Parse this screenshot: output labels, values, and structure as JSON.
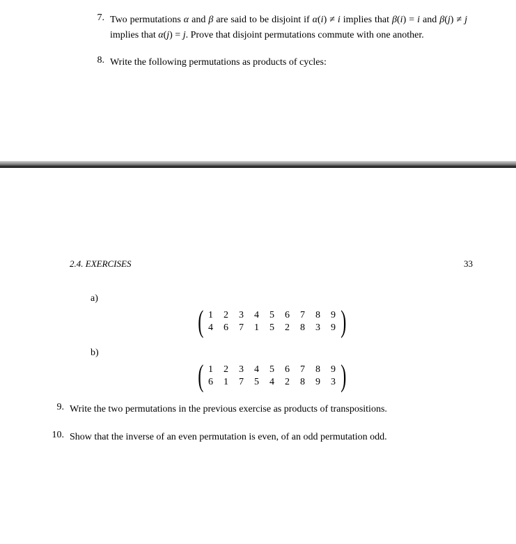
{
  "top": {
    "ex7": {
      "num": "7.",
      "text_html": "Two permutations <span class='it'>α</span> and <span class='it'>β</span> are said to be disjoint if <span class='it'>α</span>(<span class='it'>i</span>) ≠ <span class='it'>i</span> implies that <span class='it'>β</span>(<span class='it'>i</span>) = <span class='it'>i</span> and <span class='it'>β</span>(<span class='it'>j</span>) ≠ <span class='it'>j</span> implies that <span class='it'>α</span>(<span class='it'>j</span>) = <span class='it'>j</span>. Prove that disjoint permutations commute with one another."
    },
    "ex8": {
      "num": "8.",
      "text": "Write the following permutations as products of cycles:"
    }
  },
  "runhead": {
    "section": "2.4.  EXERCISES",
    "page": "33"
  },
  "sub_a": "a)",
  "sub_b": "b)",
  "matrix_a": {
    "row1": [
      "1",
      "2",
      "3",
      "4",
      "5",
      "6",
      "7",
      "8",
      "9"
    ],
    "row2": [
      "4",
      "6",
      "7",
      "1",
      "5",
      "2",
      "8",
      "3",
      "9"
    ]
  },
  "matrix_b": {
    "row1": [
      "1",
      "2",
      "3",
      "4",
      "5",
      "6",
      "7",
      "8",
      "9"
    ],
    "row2": [
      "6",
      "1",
      "7",
      "5",
      "4",
      "2",
      "8",
      "9",
      "3"
    ]
  },
  "ex9": {
    "num": "9.",
    "text": "Write the two permutations in the previous exercise as products of transpositions."
  },
  "ex10": {
    "num": "10.",
    "text": "Show that the inverse of an even permutation is even, of an odd permutation odd."
  }
}
